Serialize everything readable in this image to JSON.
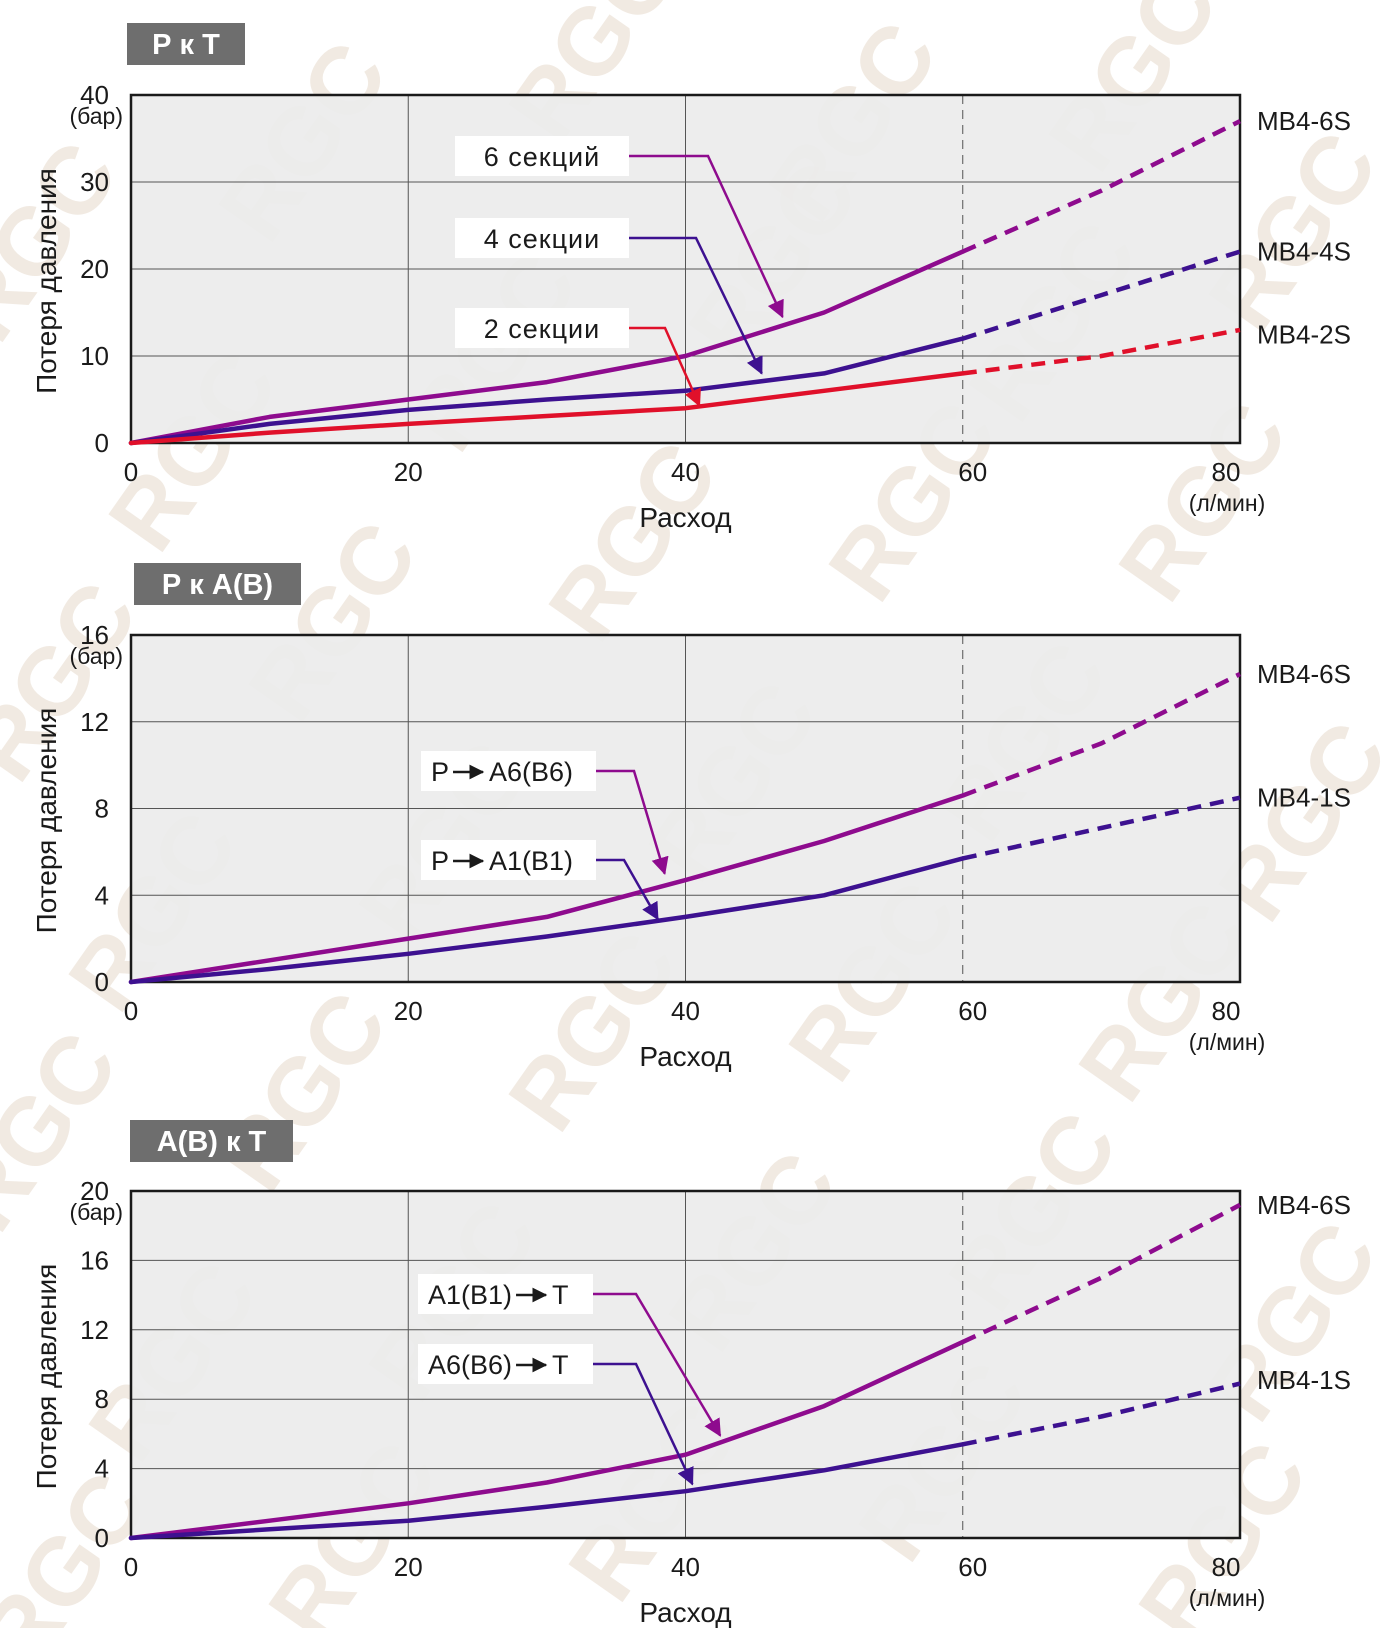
{
  "colors": {
    "plot_bg": "#ececec",
    "grid": "#555555",
    "title_box": "#6e6e6e",
    "purple": "#8e0b8e",
    "indigo": "#3d1190",
    "red": "#e0102a",
    "watermark": "#d9c9b4"
  },
  "watermark_text": "RGC",
  "chart_data": [
    {
      "type": "line",
      "title": "Р к Т",
      "xlabel": "Расход",
      "ylabel": "Потеря давления",
      "x_unit": "(л/мин)",
      "y_unit": "(бар)",
      "xlim": [
        0,
        80
      ],
      "ylim": [
        0,
        40
      ],
      "xticks": [
        0,
        20,
        40,
        60,
        80
      ],
      "yticks": [
        0,
        10,
        20,
        30,
        40
      ],
      "rated_flow_line": 60,
      "series": [
        {
          "name": "6 секций",
          "model": "MB4-6S",
          "color": "purple",
          "x": [
            0,
            10,
            20,
            30,
            40,
            50,
            60,
            70,
            80
          ],
          "y": [
            0,
            3,
            5,
            7,
            10,
            15,
            22,
            29,
            37
          ],
          "solid_until": 60,
          "label_y": 37,
          "arrow_to": [
            47,
            14.5
          ]
        },
        {
          "name": "4 секции",
          "model": "MB4-4S",
          "color": "indigo",
          "x": [
            0,
            10,
            20,
            30,
            40,
            50,
            60,
            70,
            80
          ],
          "y": [
            0,
            2.2,
            3.8,
            5,
            6,
            8,
            12,
            17,
            22
          ],
          "solid_until": 60,
          "label_y": 22,
          "arrow_to": [
            45.5,
            8
          ]
        },
        {
          "name": "2 секции",
          "model": "MB4-2S",
          "color": "red",
          "x": [
            0,
            10,
            20,
            30,
            40,
            50,
            60,
            70,
            80
          ],
          "y": [
            0,
            1.2,
            2.2,
            3.1,
            4,
            6,
            8,
            10,
            13
          ],
          "solid_until": 60,
          "label_y": 12.5,
          "arrow_to": [
            41,
            4.3
          ]
        }
      ],
      "callouts": [
        {
          "text": "6 секций",
          "series": 0
        },
        {
          "text": "4 секции",
          "series": 1
        },
        {
          "text": "2 секции",
          "series": 2
        }
      ]
    },
    {
      "type": "line",
      "title": "Р к А(В)",
      "xlabel": "Расход",
      "ylabel": "Потеря давления",
      "x_unit": "(л/мин)",
      "y_unit": "(бар)",
      "xlim": [
        0,
        80
      ],
      "ylim": [
        0,
        16
      ],
      "xticks": [
        0,
        20,
        40,
        60,
        80
      ],
      "yticks": [
        0,
        4,
        8,
        12,
        16
      ],
      "rated_flow_line": 60,
      "series": [
        {
          "name": "P → A6(B6)",
          "model": "MB4-6S",
          "color": "purple",
          "x": [
            0,
            10,
            20,
            30,
            40,
            50,
            60,
            70,
            80
          ],
          "y": [
            0,
            1,
            2,
            3,
            4.7,
            6.5,
            8.6,
            11,
            14.2
          ],
          "solid_until": 60,
          "label_y": 14.2,
          "arrow_to": [
            38.5,
            5
          ]
        },
        {
          "name": "P → A1(B1)",
          "model": "MB4-1S",
          "color": "indigo",
          "x": [
            0,
            10,
            20,
            30,
            40,
            50,
            60,
            70,
            80
          ],
          "y": [
            0,
            0.6,
            1.3,
            2.1,
            3,
            4,
            5.7,
            7.1,
            8.5
          ],
          "solid_until": 60,
          "label_y": 8.5,
          "arrow_to": [
            38,
            2.9
          ]
        }
      ],
      "callouts": [
        {
          "text_left": "P",
          "text_right": "A6(B6)",
          "series": 0
        },
        {
          "text_left": "P",
          "text_right": "A1(B1)",
          "series": 1
        }
      ]
    },
    {
      "type": "line",
      "title": "А(В) к Т",
      "xlabel": "Расход",
      "ylabel": "Потеря давления",
      "x_unit": "(л/мин)",
      "y_unit": "(бар)",
      "xlim": [
        0,
        80
      ],
      "ylim": [
        0,
        20
      ],
      "xticks": [
        0,
        20,
        40,
        60,
        80
      ],
      "yticks": [
        0,
        4,
        8,
        12,
        16,
        20
      ],
      "rated_flow_line": 60,
      "series": [
        {
          "name": "A1(B1) → T",
          "model": "MB4-6S",
          "color": "purple",
          "x": [
            0,
            10,
            20,
            30,
            40,
            50,
            60,
            70,
            80
          ],
          "y": [
            0,
            1,
            2,
            3.2,
            4.8,
            7.6,
            11.3,
            15,
            19.2
          ],
          "solid_until": 60,
          "label_y": 19.2,
          "arrow_to": [
            42.5,
            5.9
          ]
        },
        {
          "name": "A6(B6) → T",
          "model": "MB4-1S",
          "color": "indigo",
          "x": [
            0,
            10,
            20,
            30,
            40,
            50,
            60,
            70,
            80
          ],
          "y": [
            0,
            0.5,
            1,
            1.8,
            2.7,
            3.9,
            5.4,
            7,
            8.9
          ],
          "solid_until": 60,
          "label_y": 9.1,
          "arrow_to": [
            40.5,
            3.1
          ]
        }
      ],
      "callouts": [
        {
          "text_left": "A1(B1)",
          "text_right": "T",
          "series": 0
        },
        {
          "text_left": "A6(B6)",
          "text_right": "T",
          "series": 1
        }
      ]
    }
  ]
}
